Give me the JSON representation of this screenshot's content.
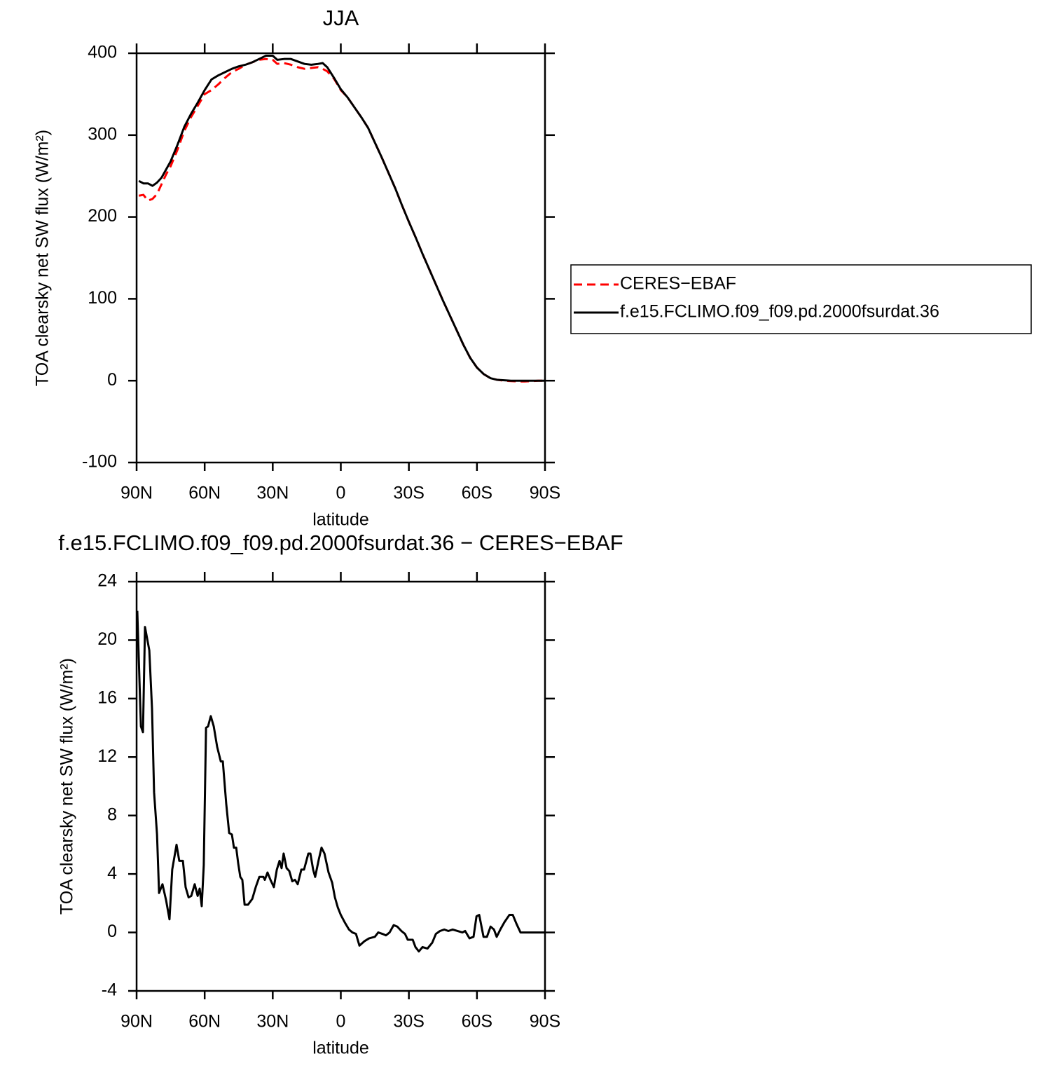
{
  "chart_data": [
    {
      "type": "line",
      "title": "JJA",
      "xlabel": "latitude",
      "ylabel": "TOA clearsky net SW flux (W/m²)",
      "xlim": [
        90,
        -90
      ],
      "xticks": [
        {
          "value": 90,
          "label": "90N"
        },
        {
          "value": 60,
          "label": "60N"
        },
        {
          "value": 30,
          "label": "30N"
        },
        0,
        {
          "value": -30,
          "label": "30S"
        },
        {
          "value": -60,
          "label": "60S"
        },
        {
          "value": -90,
          "label": "90S"
        }
      ],
      "ylim": [
        -100,
        400
      ],
      "yticks": [
        -100,
        0,
        100,
        200,
        300,
        400
      ],
      "legend": "right",
      "x": [
        89,
        87,
        85,
        83,
        81,
        79,
        77,
        75,
        72,
        69,
        66,
        63,
        60,
        57,
        54,
        51,
        48,
        45,
        42,
        39,
        36,
        33,
        30,
        28,
        25,
        22,
        19,
        16,
        13,
        10,
        8,
        6,
        3,
        0,
        -3,
        -6,
        -9,
        -12,
        -15,
        -18,
        -21,
        -24,
        -27,
        -30,
        -33,
        -36,
        -39,
        -42,
        -45,
        -48,
        -51,
        -54,
        -57,
        -60,
        -63,
        -66,
        -69,
        -72,
        -75,
        -78,
        -81,
        -84,
        -87,
        -90
      ],
      "series": [
        {
          "name": "CERES−EBAF",
          "color": "#ff0000",
          "line_style": "dashed",
          "values": [
            226,
            227,
            220,
            222,
            228,
            240,
            252,
            262,
            282,
            305,
            322,
            336,
            350,
            355,
            362,
            370,
            377,
            381,
            386,
            389,
            392,
            393,
            392,
            387,
            388,
            386,
            383,
            381,
            382,
            383,
            381,
            378,
            369,
            355,
            346,
            334,
            322,
            309,
            291,
            273,
            254,
            235,
            214,
            194,
            175,
            155,
            136,
            117,
            98,
            80,
            62,
            44,
            28,
            16,
            8,
            3,
            1,
            0,
            -0.5,
            -1,
            -1,
            -0.5,
            0,
            0
          ]
        },
        {
          "name": "f.e15.FCLIMO.f09_f09.pd.2000fsurdat.36",
          "color": "#000000",
          "line_style": "solid",
          "values": [
            244,
            241,
            241,
            238,
            242,
            248,
            258,
            268,
            288,
            310,
            326,
            340,
            355,
            368,
            373,
            377,
            381,
            384,
            386,
            389,
            393,
            397,
            397,
            392,
            393,
            393,
            390,
            387,
            386,
            387,
            388,
            383,
            370,
            356,
            346,
            334,
            322,
            309,
            291,
            273,
            254,
            235,
            214,
            194,
            175,
            155,
            136,
            117,
            98,
            80,
            62,
            44,
            28,
            16,
            8,
            3,
            1,
            0.5,
            0,
            0,
            0,
            0,
            0,
            0
          ]
        }
      ]
    },
    {
      "type": "line",
      "title": "f.e15.FCLIMO.f09_f09.pd.2000fsurdat.36 − CERES−EBAF",
      "xlabel": "latitude",
      "ylabel": "TOA clearsky net SW flux (W/m²)",
      "xlim": [
        90,
        -90
      ],
      "xticks": [
        {
          "value": 90,
          "label": "90N"
        },
        {
          "value": 60,
          "label": "60N"
        },
        {
          "value": 30,
          "label": "30N"
        },
        0,
        {
          "value": -30,
          "label": "30S"
        },
        {
          "value": -60,
          "label": "60S"
        },
        {
          "value": -90,
          "label": "90S"
        }
      ],
      "ylim": [
        -4,
        24
      ],
      "yticks": [
        -4,
        0,
        4,
        8,
        12,
        16,
        20,
        24
      ],
      "color": "#000000",
      "x": [
        89.7,
        88.1,
        87.2,
        86.3,
        84.4,
        83.2,
        82.3,
        81,
        80.1,
        78.6,
        77,
        75.5,
        74.3,
        72.4,
        71.2,
        69.6,
        68.4,
        67.1,
        65.9,
        64.4,
        63.1,
        62.2,
        61.3,
        60.4,
        59.4,
        58.5,
        57.3,
        56,
        54.5,
        52.9,
        52,
        50.5,
        49.2,
        48,
        47.1,
        46.1,
        45.2,
        44.3,
        43.4,
        42.4,
        40.9,
        39,
        37.5,
        35.9,
        34.1,
        33.5,
        32.3,
        31,
        29.5,
        28.2,
        27,
        26.1,
        25.2,
        23.9,
        22.7,
        21.4,
        20.2,
        19,
        17.4,
        16.2,
        14.3,
        13.4,
        12.2,
        11.3,
        9.7,
        8.5,
        7.2,
        5.4,
        3.8,
        2.6,
        1.3,
        0,
        -1.7,
        -3.6,
        -5.1,
        -6.7,
        -8.2,
        -10.4,
        -12.5,
        -15,
        -16.5,
        -18.4,
        -19.9,
        -21.5,
        -23.3,
        -24.9,
        -26.7,
        -28.3,
        -29.5,
        -31.7,
        -32.9,
        -34.4,
        -36,
        -38.2,
        -40.3,
        -41.9,
        -43.7,
        -45.6,
        -47.4,
        -49.3,
        -51.4,
        -53.6,
        -54.8,
        -56.7,
        -58.5,
        -59.8,
        -61,
        -62.9,
        -64.4,
        -66,
        -67.5,
        -68.7,
        -70.3,
        -72.1,
        -74.3,
        -75.8,
        -77.4,
        -79.2,
        -81.4,
        -90
      ],
      "values": [
        22,
        14.1,
        13.7,
        20.9,
        19.3,
        15.3,
        9.6,
        6.7,
        2.7,
        3.3,
        2.2,
        0.9,
        4.3,
        6,
        4.9,
        4.9,
        3.1,
        2.4,
        2.5,
        3.3,
        2.5,
        3,
        1.8,
        4.6,
        14,
        14.1,
        14.8,
        14.1,
        12.7,
        11.7,
        11.7,
        8.8,
        6.8,
        6.7,
        5.8,
        5.8,
        4.7,
        3.8,
        3.6,
        1.9,
        1.9,
        2.3,
        3.1,
        3.8,
        3.8,
        3.6,
        4.1,
        3.6,
        3.1,
        4.3,
        4.9,
        4.4,
        5.4,
        4.4,
        4.2,
        3.5,
        3.6,
        3.3,
        4.3,
        4.3,
        5.4,
        5.4,
        4.3,
        3.8,
        5,
        5.8,
        5.4,
        4.1,
        3.4,
        2.4,
        1.7,
        1.2,
        0.7,
        0.2,
        0,
        -0.1,
        -0.9,
        -0.6,
        -0.4,
        -0.3,
        0,
        -0.1,
        -0.2,
        0,
        0.5,
        0.4,
        0.1,
        -0.1,
        -0.5,
        -0.5,
        -1,
        -1.3,
        -1,
        -1.1,
        -0.7,
        -0.1,
        0.1,
        0.2,
        0.1,
        0.2,
        0.1,
        0,
        0.1,
        -0.4,
        -0.3,
        1.1,
        1.2,
        -0.3,
        -0.3,
        0.4,
        0.2,
        -0.3,
        0.2,
        0.7,
        1.2,
        1.2,
        0.6,
        0,
        0,
        0
      ]
    }
  ]
}
